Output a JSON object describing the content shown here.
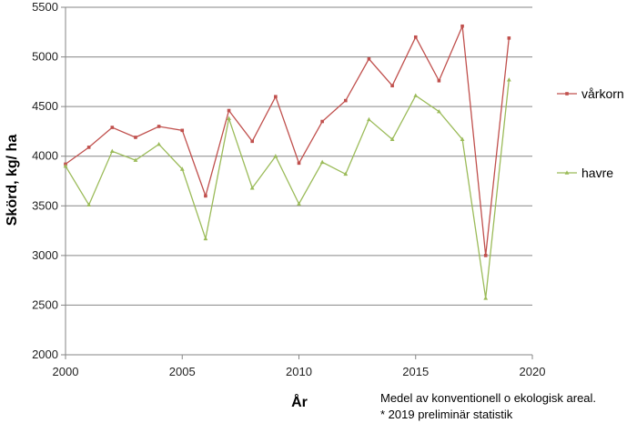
{
  "chart_data": {
    "type": "line",
    "xlabel": "År",
    "ylabel": "Skörd, kg/ ha",
    "xlim": [
      2000,
      2020
    ],
    "ylim": [
      2000,
      5500
    ],
    "xticks": [
      2000,
      2005,
      2010,
      2015,
      2020
    ],
    "yticks": [
      2000,
      2500,
      3000,
      3500,
      4000,
      4500,
      5000,
      5500
    ],
    "grid": "horizontal",
    "legend_position": "right",
    "series": [
      {
        "name": "vårkorn",
        "color": "#c0504d",
        "x": [
          2000,
          2001,
          2002,
          2003,
          2004,
          2005,
          2006,
          2007,
          2008,
          2009,
          2010,
          2011,
          2012,
          2013,
          2014,
          2015,
          2016,
          2017,
          2018,
          2019
        ],
        "y": [
          3920,
          4090,
          4290,
          4190,
          4300,
          4260,
          3600,
          4460,
          4150,
          4600,
          3930,
          4350,
          4560,
          4980,
          4710,
          5200,
          4760,
          5310,
          3000,
          5190
        ]
      },
      {
        "name": "havre",
        "color": "#9bbb59",
        "x": [
          2000,
          2001,
          2002,
          2003,
          2004,
          2005,
          2006,
          2007,
          2008,
          2009,
          2010,
          2011,
          2012,
          2013,
          2014,
          2015,
          2016,
          2017,
          2018,
          2019
        ],
        "y": [
          3900,
          3510,
          4050,
          3960,
          4120,
          3870,
          3170,
          4380,
          3680,
          4000,
          3520,
          3940,
          3820,
          4370,
          4170,
          4610,
          4450,
          4170,
          2570,
          4770
        ]
      }
    ],
    "annotations": [
      "Medel av konventionell o ekologisk areal.",
      "* 2019 preliminär statistik"
    ]
  }
}
